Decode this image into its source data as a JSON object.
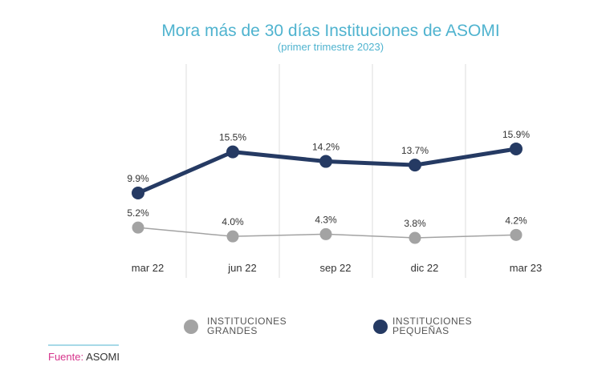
{
  "chart_data": {
    "type": "line",
    "title": "Mora más de 30 días Instituciones de ASOMI",
    "subtitle": "(primer trimestre 2023)",
    "categories": [
      "mar 22",
      "jun 22",
      "sep 22",
      "dic 22",
      "mar 23"
    ],
    "series": [
      {
        "name": "INSTITUCIONES PEQUEÑAS",
        "legend_lines": [
          "INSTITUCIONES",
          "PEQUEÑAS"
        ],
        "color": "#253a63",
        "values": [
          9.9,
          15.5,
          14.2,
          13.7,
          15.9
        ],
        "labels": [
          "9.9%",
          "15.5%",
          "14.2%",
          "13.7%",
          "15.9%"
        ]
      },
      {
        "name": "INSTITUCIONES GRANDES",
        "legend_lines": [
          "INSTITUCIONES",
          "GRANDES"
        ],
        "color": "#a3a3a3",
        "values": [
          5.2,
          4.0,
          4.3,
          3.8,
          4.2
        ],
        "labels": [
          "5.2%",
          "4.0%",
          "4.3%",
          "3.8%",
          "4.2%"
        ]
      }
    ],
    "ylim": [
      0,
      20
    ],
    "grid": "vertical",
    "legend": "bottom"
  },
  "source": {
    "label": "Fuente:",
    "value": "ASOMI"
  },
  "colors": {
    "title": "#4fb3cf",
    "source_label": "#d6358c",
    "source_rule": "#4fb3cf",
    "grid": "#dddddd"
  }
}
